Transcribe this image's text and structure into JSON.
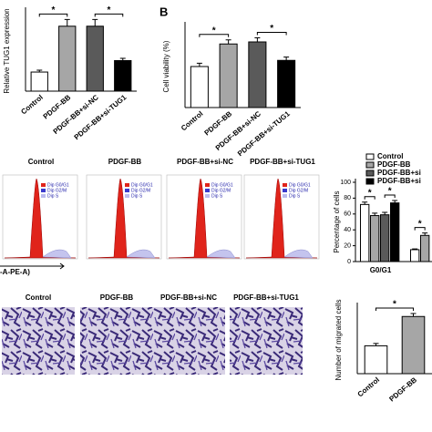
{
  "chart_data": [
    {
      "type": "bar",
      "y_label": "Relative TUG1 expression",
      "categories": [
        "Control",
        "PDGF-BB",
        "PDGF-BB+si-NC",
        "PDGF-BB+si-TUG1"
      ],
      "values": [
        1.0,
        3.4,
        3.4,
        1.6
      ],
      "errors": [
        0.1,
        0.35,
        0.35,
        0.12
      ],
      "colors": [
        "#ffffff",
        "#a6a6a6",
        "#5a5a5a",
        "#000000"
      ],
      "ylim": [
        0,
        4.2
      ],
      "annotations": [
        "*",
        "*"
      ]
    },
    {
      "type": "bar",
      "panel_label": "B",
      "y_label": "Cell viability (%)",
      "categories": [
        "Control",
        "PDGF-BB",
        "PDGF-BB+si-NC",
        "PDGF-BB+si-TUG1"
      ],
      "values": [
        100,
        155,
        160,
        115
      ],
      "errors": [
        8,
        10,
        10,
        8
      ],
      "colors": [
        "#ffffff",
        "#a6a6a6",
        "#5a5a5a",
        "#000000"
      ],
      "ylim": [
        0,
        200
      ],
      "annotations": [
        "*",
        "*"
      ]
    },
    {
      "type": "grouped-bar",
      "y_label": "Percentage of cells",
      "categories": [
        "G0/G1",
        null
      ],
      "series": [
        {
          "name": "Control",
          "color": "#ffffff",
          "values": [
            72,
            15
          ],
          "errors": [
            3,
            1
          ]
        },
        {
          "name": "PDGF-BB",
          "color": "#a6a6a6",
          "values": [
            58,
            33
          ],
          "errors": [
            3,
            3
          ]
        },
        {
          "name": "PDGF-BB+si",
          "color": "#5a5a5a",
          "values": [
            59,
            null
          ],
          "errors": [
            3,
            null
          ]
        },
        {
          "name": "PDGF-BB+si",
          "color": "#000000",
          "values": [
            74,
            null
          ],
          "errors": [
            3,
            null
          ]
        }
      ],
      "ylim": [
        0,
        100
      ],
      "yticks": [
        0,
        20,
        40,
        60,
        80,
        100
      ],
      "annotations": [
        "*",
        "*",
        "*"
      ]
    },
    {
      "type": "bar",
      "y_label": "Number of migrated cells",
      "categories": [
        "Control",
        "PDGF-BB"
      ],
      "values": [
        95,
        195
      ],
      "errors": [
        8,
        10
      ],
      "colors": [
        "#ffffff",
        "#a6a6a6"
      ],
      "ylim": [
        0,
        230
      ],
      "annotations": [
        "*"
      ]
    }
  ],
  "flow_cytometry": {
    "titles": [
      "Control",
      "PDGF-BB",
      "PDGF-BB+si-NC",
      "PDGF-BB+si-TUG1"
    ],
    "legend": [
      "Dip G0/G1",
      "Dip G2/M",
      "Dip S"
    ],
    "x_label": "-A-PE-A)"
  },
  "migration_images": {
    "titles": [
      "Control",
      "PDGF-BB",
      "PDGF-BB+si-NC",
      "PDGF-BB+si-TUG1"
    ]
  }
}
